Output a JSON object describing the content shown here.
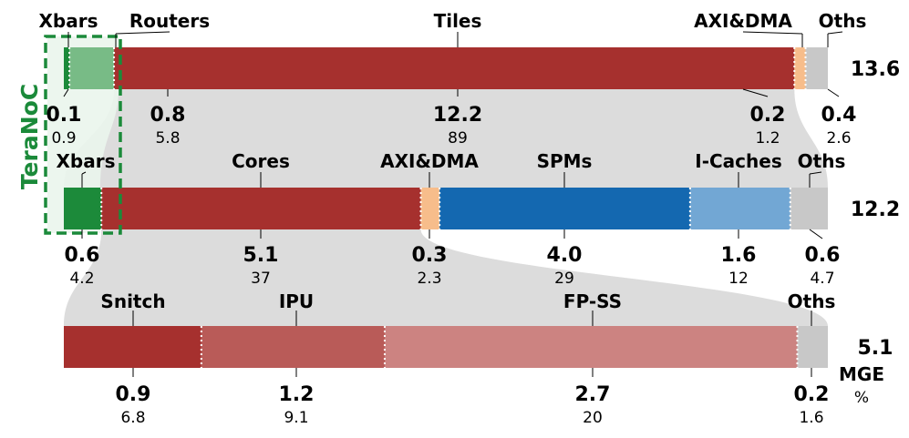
{
  "chart_data": {
    "type": "bar",
    "subtype": "stacked-breakdown",
    "unit_label": "MGE",
    "percent_label": "%",
    "highlight_label": "TeraNoC",
    "colors": {
      "red": "#a6302e",
      "orange": "#f7bd8b",
      "gray": "#c8c8c8",
      "connector": "#dcdcdc",
      "dark_green": "#1c8a3a",
      "light_green": "#78bb86",
      "blue_dark": "#1468b0",
      "blue_light": "#72a7d4",
      "red_medium": "#b95b58",
      "red_light": "#cc8381",
      "highlight": "#1b8a3a"
    },
    "bars": [
      {
        "total": "13.6",
        "segments": [
          {
            "name": "Xbars",
            "value": "0.1",
            "percent": "0.9",
            "color": "#1c8a3a"
          },
          {
            "name": "Routers",
            "value": "0.8",
            "percent": "5.8",
            "color": "#78bb86"
          },
          {
            "name": "Tiles",
            "value": "12.2",
            "percent": "89",
            "color": "#a6302e"
          },
          {
            "name": "AXI&DMA",
            "value": "0.2",
            "percent": "1.2",
            "color": "#f7bd8b"
          },
          {
            "name": "Oths",
            "value": "0.4",
            "percent": "2.6",
            "color": "#c8c8c8"
          }
        ]
      },
      {
        "total": "12.2",
        "segments": [
          {
            "name": "Xbars",
            "value": "0.6",
            "percent": "4.2",
            "color": "#1c8a3a"
          },
          {
            "name": "Cores",
            "value": "5.1",
            "percent": "37",
            "color": "#a6302e"
          },
          {
            "name": "AXI&DMA",
            "value": "0.3",
            "percent": "2.3",
            "color": "#f7bd8b"
          },
          {
            "name": "SPMs",
            "value": "4.0",
            "percent": "29",
            "color": "#1468b0"
          },
          {
            "name": "I-Caches",
            "value": "1.6",
            "percent": "12",
            "color": "#72a7d4"
          },
          {
            "name": "Oths",
            "value": "0.6",
            "percent": "4.7",
            "color": "#c8c8c8"
          }
        ]
      },
      {
        "total": "5.1",
        "segments": [
          {
            "name": "Snitch",
            "value": "0.9",
            "percent": "6.8",
            "color": "#a6302e"
          },
          {
            "name": "IPU",
            "value": "1.2",
            "percent": "9.1",
            "color": "#b95b58"
          },
          {
            "name": "FP-SS",
            "value": "2.7",
            "percent": "20",
            "color": "#cc8381"
          },
          {
            "name": "Oths",
            "value": "0.2",
            "percent": "1.6",
            "color": "#c8c8c8"
          }
        ]
      }
    ]
  }
}
